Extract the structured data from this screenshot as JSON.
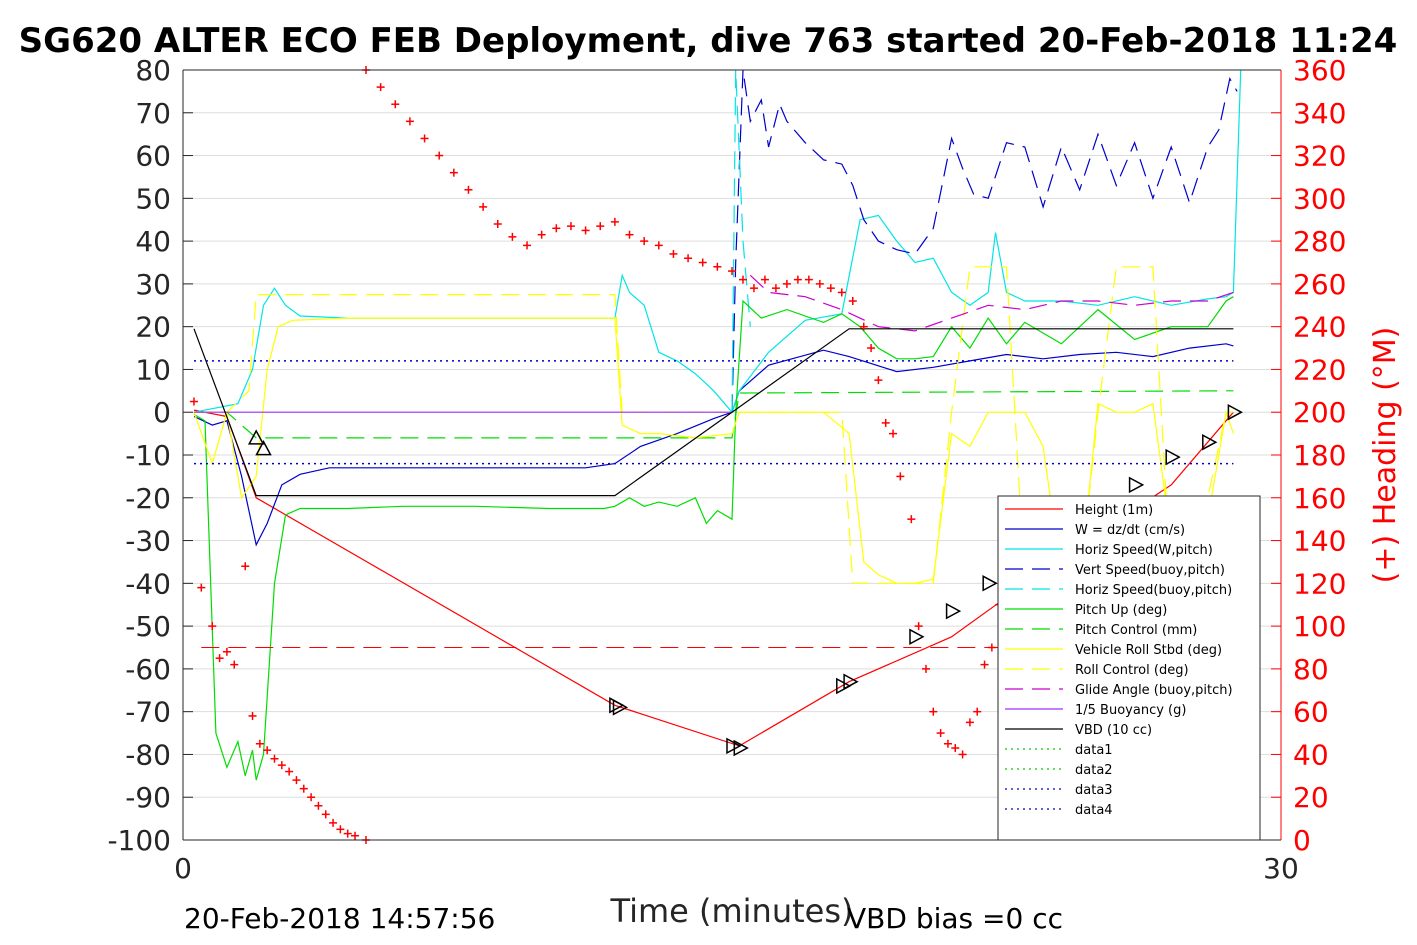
{
  "chart_data": {
    "type": "line",
    "title": "SG620 ALTER ECO FEB Deployment, dive 763 started 20-Feb-2018 11:24",
    "xlabel": "Time (minutes)",
    "ylabel_right": "(+) Heading (°M)",
    "footer_left": "20-Feb-2018 14:57:56",
    "footer_right": "VBD bias =0 cc",
    "xlim": [
      0,
      30
    ],
    "ylim": [
      -100,
      80
    ],
    "ylim_right": [
      0,
      360
    ],
    "x_ticks": [
      "0",
      "30"
    ],
    "y_ticks": [
      "80",
      "70",
      "60",
      "50",
      "40",
      "30",
      "20",
      "10",
      "0",
      "-10",
      "-20",
      "-30",
      "-40",
      "-50",
      "-60",
      "-70",
      "-80",
      "-90",
      "-100"
    ],
    "y_ticks_right": [
      "360",
      "340",
      "320",
      "300",
      "280",
      "260",
      "240",
      "220",
      "200",
      "180",
      "160",
      "140",
      "120",
      "100",
      "80",
      "60",
      "40",
      "20",
      "0"
    ],
    "grid": true,
    "legend_position": "lower-right",
    "colors": {
      "left_axis": "#262626",
      "right_axis": "#ff0000",
      "grid": "#dddddd"
    },
    "series": [
      {
        "name": "Height (1m)",
        "color": "#ff0000",
        "style": "solid",
        "x": [
          0.3,
          1.2,
          2.0,
          11.8,
          15.2,
          18.2,
          21.0,
          24.0,
          27.0,
          28.7
        ],
        "y": [
          0.5,
          -1.0,
          -20.0,
          -68.5,
          -78.0,
          -63.0,
          -52.5,
          -34.0,
          -17.0,
          0.0
        ]
      },
      {
        "name": "W = dz/dt (cm/s)",
        "color": "#0000cc",
        "style": "solid",
        "x": [
          0.3,
          0.8,
          1.2,
          1.6,
          2.0,
          2.3,
          2.7,
          3.2,
          4.0,
          6.0,
          9.0,
          11.0,
          11.8,
          12.5,
          13.5,
          14.5,
          15.0,
          15.2,
          16.0,
          17.5,
          18.2,
          19.5,
          20.5,
          21.5,
          22.5,
          23.5,
          24.5,
          25.5,
          26.5,
          27.5,
          28.5,
          28.7
        ],
        "y": [
          -1.0,
          -3.0,
          -2.0,
          -15.0,
          -31.0,
          -26.0,
          -17.0,
          -14.5,
          -13.0,
          -13.0,
          -13.0,
          -13.0,
          -12.0,
          -8.0,
          -5.0,
          -1.5,
          0.0,
          5.0,
          11.0,
          14.5,
          13.0,
          9.5,
          10.5,
          12.0,
          13.5,
          12.5,
          13.5,
          14.0,
          13.0,
          15.0,
          16.0,
          15.5
        ]
      },
      {
        "name": "Horiz Speed(W,pitch)",
        "color": "#00e5e5",
        "style": "solid",
        "x": [
          0.3,
          1.5,
          1.9,
          2.2,
          2.5,
          2.8,
          3.2,
          4.5,
          6.0,
          8.0,
          10.0,
          11.5,
          11.8,
          12.0,
          12.2,
          12.6,
          13.0,
          13.5,
          14.0,
          14.5,
          15.0,
          15.2,
          16.0,
          17.0,
          18.0,
          18.5,
          19.0,
          19.5,
          20.0,
          20.5,
          21.0,
          21.5,
          22.0,
          22.2,
          22.5,
          23.0,
          24.0,
          25.0,
          26.0,
          27.0,
          28.0,
          28.5,
          28.7,
          28.9
        ],
        "y": [
          0.0,
          2.0,
          10.0,
          25.0,
          29.0,
          25.0,
          22.5,
          22.0,
          22.0,
          22.0,
          22.0,
          22.0,
          22.0,
          32.0,
          28.0,
          25.0,
          14.0,
          12.0,
          9.0,
          5.0,
          0.0,
          5.0,
          14.0,
          21.5,
          23.0,
          45.0,
          46.0,
          40.0,
          35.0,
          36.0,
          28.0,
          25.0,
          28.0,
          42.0,
          28.0,
          26.0,
          26.0,
          25.0,
          27.0,
          25.0,
          26.5,
          27.0,
          28.0,
          80.0
        ]
      },
      {
        "name": "Vert Speed(buoy,pitch)",
        "color": "#0000cc",
        "style": "dashed",
        "x": [
          15.0,
          15.1,
          15.3,
          15.5,
          15.8,
          16.0,
          16.3,
          16.5,
          17.0,
          17.5,
          18.0,
          18.3,
          18.6,
          19.0,
          19.5,
          20.0,
          20.5,
          21.0,
          21.3,
          21.6,
          22.0,
          22.5,
          23.0,
          23.5,
          24.0,
          24.5,
          25.0,
          25.5,
          26.0,
          26.5,
          27.0,
          27.5,
          28.0,
          28.3,
          28.6,
          28.8
        ],
        "y": [
          0.0,
          35.0,
          80.0,
          68.0,
          73.0,
          62.0,
          72.0,
          68.0,
          63.0,
          59.0,
          58.0,
          53.0,
          45.0,
          40.0,
          38.0,
          37.0,
          43.0,
          64.0,
          57.0,
          51.0,
          50.0,
          63.0,
          62.0,
          48.0,
          62.0,
          52.0,
          65.0,
          53.0,
          63.0,
          50.0,
          62.0,
          49.0,
          62.0,
          66.0,
          78.0,
          75.0
        ]
      },
      {
        "name": "Horiz Speed(buoy,pitch)",
        "color": "#00e5e5",
        "style": "dashed",
        "x": [
          15.0,
          15.1,
          15.3,
          15.5
        ],
        "y": [
          0.0,
          80.0,
          40.0,
          20.0
        ]
      },
      {
        "name": "Pitch Up (deg)",
        "color": "#00dd00",
        "style": "solid",
        "x": [
          0.3,
          0.6,
          0.9,
          1.2,
          1.5,
          1.7,
          1.9,
          2.0,
          2.2,
          2.5,
          2.8,
          3.2,
          4.5,
          6.0,
          8.0,
          10.0,
          11.5,
          11.8,
          12.2,
          12.6,
          13.0,
          13.5,
          14.0,
          14.3,
          14.6,
          15.0,
          15.1,
          15.3,
          15.8,
          16.5,
          17.5,
          18.0,
          18.5,
          19.0,
          19.5,
          20.0,
          20.5,
          21.0,
          21.5,
          22.0,
          22.5,
          23.0,
          24.0,
          25.0,
          26.0,
          27.0,
          28.0,
          28.5,
          28.7
        ],
        "y": [
          -0.5,
          -2.0,
          -75.0,
          -83.0,
          -77.0,
          -85.0,
          -79.0,
          -86.0,
          -80.0,
          -40.0,
          -24.0,
          -22.5,
          -22.5,
          -22.0,
          -22.0,
          -22.5,
          -22.5,
          -22.0,
          -20.0,
          -22.0,
          -21.0,
          -22.0,
          -20.0,
          -26.0,
          -23.0,
          -25.0,
          0.0,
          26.0,
          22.0,
          24.0,
          21.0,
          23.0,
          20.0,
          15.0,
          12.5,
          12.5,
          13.0,
          20.0,
          15.0,
          22.0,
          16.0,
          21.0,
          16.0,
          24.0,
          17.0,
          20.0,
          20.0,
          26.0,
          27.0
        ]
      },
      {
        "name": "Pitch Control (mm)",
        "color": "#00dd00",
        "style": "dashed",
        "x": [
          0.3,
          1.2,
          2.0,
          2.2,
          12.0,
          15.0,
          15.2,
          28.7
        ],
        "y": [
          0.0,
          0.0,
          -6.0,
          -6.0,
          -6.0,
          -6.0,
          4.5,
          5.0
        ]
      },
      {
        "name": "Vehicle Roll Stbd (deg)",
        "color": "#ffff00",
        "style": "solid",
        "x": [
          0.3,
          0.8,
          1.2,
          1.6,
          2.0,
          2.3,
          2.6,
          3.0,
          4.5,
          6.0,
          8.0,
          10.0,
          11.5,
          11.8,
          12.0,
          12.5,
          13.0,
          14.0,
          15.0,
          15.2,
          16.0,
          17.5,
          18.2,
          18.6,
          19.0,
          19.5,
          20.0,
          20.5,
          21.0,
          21.5,
          22.0,
          22.5,
          23.0,
          23.5,
          24.0,
          24.5,
          25.0,
          25.5,
          26.0,
          26.5,
          27.0,
          27.5,
          28.0,
          28.5,
          28.7
        ],
        "y": [
          0.0,
          -12.0,
          0.0,
          -20.0,
          -15.0,
          10.0,
          20.0,
          21.5,
          22.0,
          22.0,
          22.0,
          22.0,
          22.0,
          22.0,
          -3.0,
          -5.0,
          -5.0,
          -6.0,
          -5.0,
          0.0,
          0.0,
          0.0,
          -5.0,
          -35.0,
          -38.0,
          -40.0,
          -40.0,
          -39.0,
          -5.0,
          -8.0,
          0.0,
          0.0,
          0.0,
          -8.0,
          -38.0,
          -40.0,
          2.0,
          0.0,
          0.0,
          2.0,
          -30.0,
          -35.0,
          -25.0,
          0.0,
          -5.0
        ]
      },
      {
        "name": "Roll Control (deg)",
        "color": "#ffff00",
        "style": "dashed",
        "x": [
          0.3,
          1.2,
          1.8,
          2.0,
          11.8,
          12.0,
          15.0,
          15.2,
          18.0,
          18.3,
          20.5,
          21.0,
          21.5,
          22.5,
          23.0,
          23.5,
          24.5,
          25.0,
          25.5,
          26.5,
          27.0,
          27.5,
          28.5,
          28.7
        ],
        "y": [
          0.0,
          0.0,
          5.0,
          27.5,
          27.5,
          0.0,
          0.0,
          0.0,
          0.0,
          -40.0,
          -40.0,
          0.0,
          34.0,
          34.0,
          -40.0,
          -40.0,
          -40.0,
          0.0,
          34.0,
          34.0,
          -40.0,
          -40.0,
          0.0,
          0.0
        ]
      },
      {
        "name": "Glide Angle (buoy,pitch)",
        "color": "#cc00cc",
        "style": "dashed",
        "x": [
          15.5,
          16.0,
          17.0,
          18.0,
          19.0,
          20.0,
          21.0,
          22.0,
          23.0,
          24.0,
          25.0,
          26.0,
          27.0,
          28.0,
          28.7
        ],
        "y": [
          32.0,
          28.0,
          27.0,
          24.0,
          20.0,
          19.0,
          22.0,
          25.0,
          24.0,
          26.0,
          26.0,
          25.0,
          26.0,
          26.0,
          28.0
        ]
      },
      {
        "name": "1/5 Buoyancy (g)",
        "color": "#9b30ff",
        "style": "solid",
        "x": [
          0.3,
          15.0
        ],
        "y": [
          0.0,
          0.0
        ]
      },
      {
        "name": "VBD (10 cc)",
        "color": "#000000",
        "style": "solid",
        "x": [
          0.3,
          2.0,
          11.8,
          15.0,
          18.2,
          28.7
        ],
        "y": [
          19.5,
          -19.5,
          -19.5,
          0.0,
          19.5,
          19.5
        ]
      },
      {
        "name": "data1",
        "color": "#00cc00",
        "style": "dotted",
        "x": [],
        "y": []
      },
      {
        "name": "data2",
        "color": "#00cc00",
        "style": "dotted",
        "x": [],
        "y": []
      },
      {
        "name": "data3",
        "color": "#0000cc",
        "style": "dotted",
        "x": [
          0.3,
          28.7
        ],
        "y": [
          12.0,
          12.0
        ]
      },
      {
        "name": "data4",
        "color": "#0000cc",
        "style": "dotted",
        "x": [
          0.3,
          28.7
        ],
        "y": [
          -12.0,
          -12.0
        ]
      }
    ],
    "heading_series": {
      "name": "Heading",
      "color": "#ff0000",
      "marker": "+",
      "axis": "right",
      "x": [
        0.3,
        0.5,
        0.8,
        1.0,
        1.2,
        1.4,
        1.7,
        1.9,
        2.1,
        2.3,
        2.5,
        2.7,
        2.9,
        3.1,
        3.3,
        3.5,
        3.7,
        3.9,
        4.1,
        4.3,
        4.5,
        4.7,
        5.0,
        5.0,
        5.4,
        5.8,
        6.2,
        6.6,
        7.0,
        7.4,
        7.8,
        8.2,
        8.6,
        9.0,
        9.4,
        9.8,
        10.2,
        10.6,
        11.0,
        11.4,
        11.8,
        12.2,
        12.6,
        13.0,
        13.4,
        13.8,
        14.2,
        14.6,
        15.0,
        15.3,
        15.6,
        15.9,
        16.2,
        16.5,
        16.8,
        17.1,
        17.4,
        17.7,
        18.0,
        18.3,
        18.6,
        18.8,
        19.0,
        19.2,
        19.4,
        19.6,
        19.9,
        20.1,
        20.3,
        20.5,
        20.7,
        20.9,
        21.1,
        21.3,
        21.5,
        21.7,
        21.9,
        22.1,
        22.3,
        22.5,
        22.7,
        22.9,
        23.1,
        23.3,
        23.5,
        23.7,
        23.9,
        24.1,
        24.3,
        24.5,
        24.7,
        24.9,
        25.1,
        25.3,
        25.5,
        25.7,
        25.9,
        26.1,
        26.3,
        26.5,
        26.7,
        26.9,
        27.1,
        27.3,
        27.5,
        27.7,
        27.9,
        28.1,
        28.3,
        28.5,
        28.7
      ],
      "y": [
        205,
        118,
        100,
        85,
        88,
        82,
        128,
        58,
        45,
        42,
        38,
        35,
        32,
        28,
        24,
        20,
        16,
        12,
        8,
        5,
        3,
        2,
        0,
        360,
        352,
        344,
        336,
        328,
        320,
        312,
        304,
        296,
        288,
        282,
        278,
        283,
        286,
        287,
        285,
        287,
        289,
        283,
        280,
        278,
        274,
        272,
        270,
        268,
        266,
        262,
        258,
        262,
        258,
        260,
        262,
        262,
        260,
        258,
        256,
        252,
        240,
        230,
        215,
        195,
        190,
        170,
        150,
        100,
        80,
        60,
        50,
        45,
        43,
        40,
        55,
        60,
        82,
        90,
        110,
        130,
        138,
        142,
        140,
        138,
        120,
        100,
        90,
        80,
        70,
        66,
        64,
        62,
        68,
        75,
        80,
        90,
        110,
        120,
        125,
        130,
        138,
        140,
        120,
        100,
        80,
        70,
        60,
        55,
        50,
        48,
        30
      ]
    },
    "triangle_markers": {
      "color": "#000000",
      "x": [
        2.0,
        2.2,
        11.8,
        11.9,
        15.0,
        15.2,
        18.0,
        18.2,
        20.0,
        21.0,
        22.0,
        23.0,
        24.0,
        25.0,
        26.0,
        27.0,
        28.0,
        28.7
      ],
      "y": [
        -6.0,
        -8.5,
        -68.5,
        -69.0,
        -78.0,
        -78.5,
        -64.0,
        -63.0,
        -52.5,
        -46.5,
        -40.0,
        -34.0,
        -30.0,
        -23.0,
        -17.0,
        -10.5,
        -7.0,
        0.0
      ]
    }
  }
}
